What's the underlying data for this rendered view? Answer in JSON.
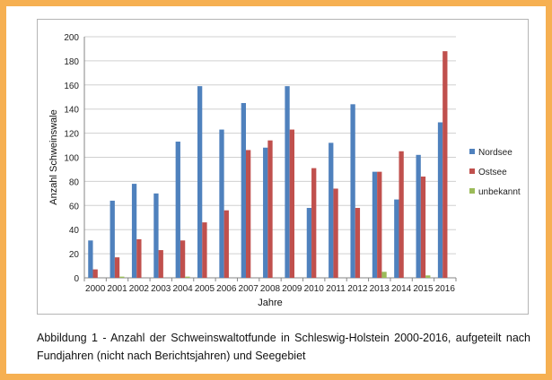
{
  "caption": "Abbildung 1 - Anzahl der Schweinswaltotfunde in Schleswig-Holstein 2000-2016, aufgeteilt nach Fundjahren (nicht nach Berichtsjahren) und Seegebiet",
  "chart_data": {
    "type": "bar",
    "title": "",
    "xlabel": "Jahre",
    "ylabel": "Anzahl Schweinswale",
    "categories": [
      "2000",
      "2001",
      "2002",
      "2003",
      "2004",
      "2005",
      "2006",
      "2007",
      "2008",
      "2009",
      "2010",
      "2011",
      "2012",
      "2013",
      "2014",
      "2015",
      "2016"
    ],
    "ylim": [
      0,
      200
    ],
    "yticks": [
      0,
      20,
      40,
      60,
      80,
      100,
      120,
      140,
      160,
      180,
      200
    ],
    "grid": true,
    "legend_position": "right",
    "series": [
      {
        "name": "Nordsee",
        "color": "#4f81bd",
        "values": [
          31,
          64,
          78,
          70,
          113,
          159,
          123,
          145,
          108,
          159,
          58,
          112,
          144,
          88,
          65,
          102,
          129
        ]
      },
      {
        "name": "Ostsee",
        "color": "#c0504d",
        "values": [
          7,
          17,
          32,
          23,
          31,
          46,
          56,
          106,
          114,
          123,
          91,
          74,
          58,
          88,
          105,
          84,
          188
        ]
      },
      {
        "name": "unbekannt",
        "color": "#9bbb59",
        "values": [
          0,
          1,
          0,
          0,
          1,
          0,
          0,
          0,
          0,
          0,
          0,
          0,
          0,
          5,
          0,
          2,
          0
        ]
      }
    ]
  }
}
